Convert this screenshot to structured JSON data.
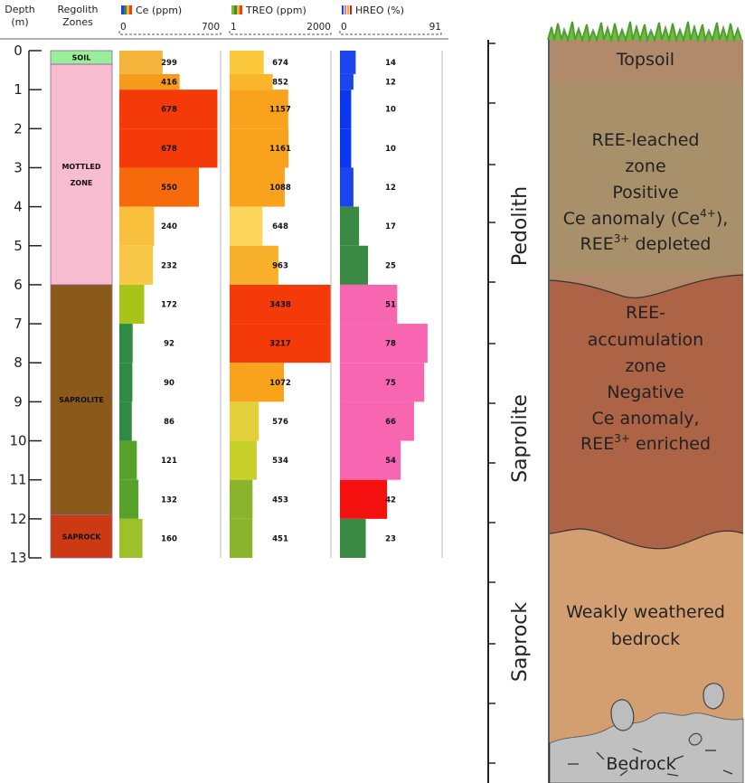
{
  "chart_data": {
    "type": "bar",
    "headers": {
      "depth": [
        "Depth",
        "(m)"
      ],
      "zones": [
        "Regolith",
        "Zones"
      ],
      "ce": "Ce (ppm)",
      "treo": "TREO (ppm)",
      "hreo": "HREO (%)"
    },
    "ranges": {
      "ce": {
        "min_label": "0",
        "max_label": "700",
        "min": 0,
        "max": 700
      },
      "treo": {
        "min_label": "1",
        "max_label": "2000",
        "min": 1,
        "max": 2000
      },
      "hreo": {
        "min_label": "0",
        "max_label": "91",
        "min": 0,
        "max": 91
      }
    },
    "depth_ticks": [
      "0",
      "1",
      "2",
      "3",
      "4",
      "5",
      "6",
      "7",
      "8",
      "9",
      "10",
      "11",
      "12",
      "13"
    ],
    "depth_max": 13,
    "zones": [
      {
        "label": "SOIL",
        "from": 0,
        "to": 0.35,
        "color": "#99ee99"
      },
      {
        "label": "MOTTLED ZONE",
        "label_lines": [
          "MOTTLED",
          "ZONE"
        ],
        "from": 0.35,
        "to": 6,
        "color": "#f8bcd0"
      },
      {
        "label": "SAPROLITE",
        "from": 6,
        "to": 11.9,
        "color": "#8b5a1a"
      },
      {
        "label": "SAPROCK",
        "from": 11.9,
        "to": 13,
        "color": "#cc3a14"
      }
    ],
    "intervals": [
      {
        "from": 0,
        "to": 0.6,
        "ce": 299,
        "treo": 674,
        "hreo": 14,
        "ce_color": "#f5b43c",
        "treo_color": "#fcc83c",
        "hreo_color": "#1a44ee"
      },
      {
        "from": 0.6,
        "to": 1.0,
        "ce": 416,
        "treo": 852,
        "hreo": 12,
        "ce_color": "#f59a1a",
        "treo_color": "#f9b62a",
        "hreo_color": "#1a44ee"
      },
      {
        "from": 1.0,
        "to": 2.0,
        "ce": 678,
        "treo": 1157,
        "hreo": 10,
        "ce_color": "#f53a0a",
        "treo_color": "#f9a21c",
        "hreo_color": "#0a36ee"
      },
      {
        "from": 2.0,
        "to": 3.0,
        "ce": 678,
        "treo": 1161,
        "hreo": 10,
        "ce_color": "#f53a0a",
        "treo_color": "#f9a21c",
        "hreo_color": "#0a36ee"
      },
      {
        "from": 3.0,
        "to": 4.0,
        "ce": 550,
        "treo": 1088,
        "hreo": 12,
        "ce_color": "#f76a0c",
        "treo_color": "#f9a21c",
        "hreo_color": "#1a44ee"
      },
      {
        "from": 4.0,
        "to": 5.0,
        "ce": 240,
        "treo": 648,
        "hreo": 17,
        "ce_color": "#f8c03c",
        "treo_color": "#fcd45a",
        "hreo_color": "#3a8a44"
      },
      {
        "from": 5.0,
        "to": 6.0,
        "ce": 232,
        "treo": 963,
        "hreo": 25,
        "ce_color": "#f8c848",
        "treo_color": "#f9b02a",
        "hreo_color": "#3a8a44"
      },
      {
        "from": 6.0,
        "to": 7.0,
        "ce": 172,
        "treo": 3438,
        "hreo": 51,
        "ce_color": "#a8c41a",
        "treo_color": "#f53a0a",
        "hreo_color": "#f865b0"
      },
      {
        "from": 7.0,
        "to": 8.0,
        "ce": 92,
        "treo": 3217,
        "hreo": 78,
        "ce_color": "#2e8a44",
        "treo_color": "#f53a0a",
        "hreo_color": "#f865b0"
      },
      {
        "from": 8.0,
        "to": 9.0,
        "ce": 90,
        "treo": 1072,
        "hreo": 75,
        "ce_color": "#2e8a44",
        "treo_color": "#f9a21c",
        "hreo_color": "#f865b0"
      },
      {
        "from": 9.0,
        "to": 10.0,
        "ce": 86,
        "treo": 576,
        "hreo": 66,
        "ce_color": "#2e8a44",
        "treo_color": "#e4d03a",
        "hreo_color": "#f865b0"
      },
      {
        "from": 10.0,
        "to": 11.0,
        "ce": 121,
        "treo": 534,
        "hreo": 54,
        "ce_color": "#58a22c",
        "treo_color": "#c8d02a",
        "hreo_color": "#f865b0"
      },
      {
        "from": 11.0,
        "to": 12.0,
        "ce": 132,
        "treo": 453,
        "hreo": 42,
        "ce_color": "#58a22c",
        "treo_color": "#8ab42c",
        "hreo_color": "#f51010"
      },
      {
        "from": 12.0,
        "to": 13.0,
        "ce": 160,
        "treo": 451,
        "hreo": 23,
        "ce_color": "#a0c02a",
        "treo_color": "#8ab42c",
        "hreo_color": "#3a8a44"
      }
    ],
    "profile": {
      "side_labels": [
        "Pedolith",
        "Saprolite",
        "Saprock"
      ],
      "layers": [
        {
          "name": "topsoil",
          "text": [
            "Topsoil"
          ],
          "color": "#b08a6a"
        },
        {
          "name": "leached",
          "text": [
            "REE-leached",
            "zone",
            "Positive",
            "Ce anomaly (Ce4+),",
            "REE3+ depleted"
          ],
          "color": "#a8906a"
        },
        {
          "name": "accumulation",
          "text": [
            "REE-",
            "accumulation",
            "zone",
            "Negative",
            "Ce anomaly,",
            "REE3+ enriched"
          ],
          "color": "#ad6446"
        },
        {
          "name": "saprock",
          "text": [
            "Weakly weathered",
            "bedrock"
          ],
          "color": "#d39f70"
        },
        {
          "name": "bedrock",
          "text": [
            "Bedrock"
          ],
          "color": "#c0c0c0"
        }
      ],
      "colors": {
        "grass": "#5fae3a"
      }
    }
  }
}
